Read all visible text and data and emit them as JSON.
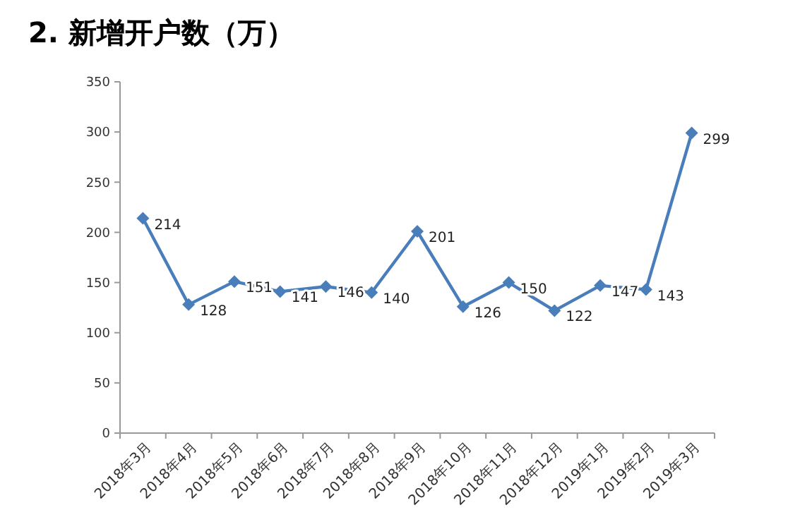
{
  "chart_data": {
    "type": "line",
    "title": "2. 新增开户数（万）",
    "categories": [
      "2018年3月",
      "2018年4月",
      "2018年5月",
      "2018年6月",
      "2018年7月",
      "2018年8月",
      "2018年9月",
      "2018年10月",
      "2018年11月",
      "2018年12月",
      "2019年1月",
      "2019年2月",
      "2019年3月"
    ],
    "series": [
      {
        "color": "#4a7ebb",
        "values": [
          214,
          128,
          151,
          141,
          146,
          140,
          201,
          126,
          150,
          122,
          147,
          143,
          299
        ]
      }
    ],
    "ylim": [
      0,
      350
    ],
    "yticks": [
      0,
      50,
      100,
      150,
      200,
      250,
      300,
      350
    ],
    "marker": "diamond",
    "line_style": "solid",
    "data_labels": true
  }
}
